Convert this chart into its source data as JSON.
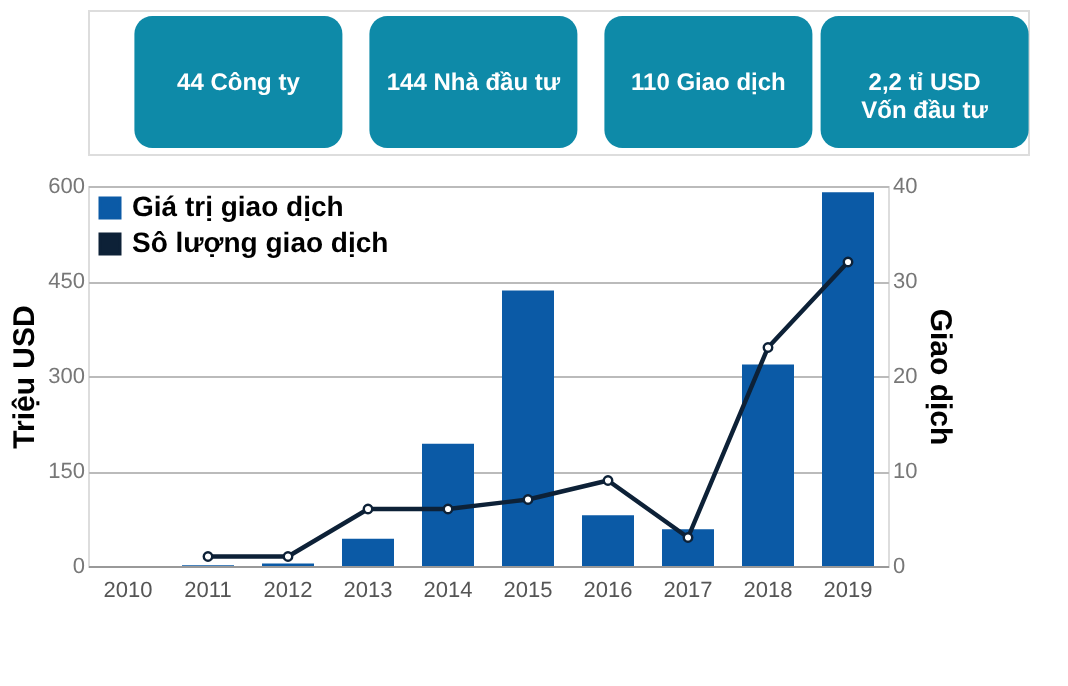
{
  "chart_data": {
    "type": "bar",
    "annotations": [
      "44 Công ty",
      "144 Nhà đầu tư",
      "110 Giao dịch",
      "2,2 tỉ USD\nVốn đầu tư"
    ],
    "categories": [
      "2010",
      "2011",
      "2012",
      "2013",
      "2014",
      "2015",
      "2016",
      "2017",
      "2018",
      "2019"
    ],
    "series": [
      {
        "name": "Giá trị giao dịch",
        "color": "#0b5aa6",
        "values": [
          0,
          1,
          4,
          43,
          193,
          435,
          80,
          58,
          318,
          590
        ]
      },
      {
        "name": "Sô lượng giao dịch",
        "type": "line",
        "axis": "y2",
        "color": "#0d2137",
        "values": [
          null,
          1,
          1,
          6,
          6,
          7,
          9,
          3,
          23,
          32
        ]
      }
    ],
    "ylabel": "Triệu USD",
    "y2label": "Giao dịch",
    "ylim": [
      0,
      600
    ],
    "yticks": [
      0,
      150,
      300,
      450,
      600
    ],
    "y2lim": [
      0,
      40
    ],
    "y2ticks": [
      0,
      10,
      20,
      30,
      40
    ],
    "grid": "y",
    "legend": "top left",
    "marker": "circle",
    "line_style": "solid"
  }
}
